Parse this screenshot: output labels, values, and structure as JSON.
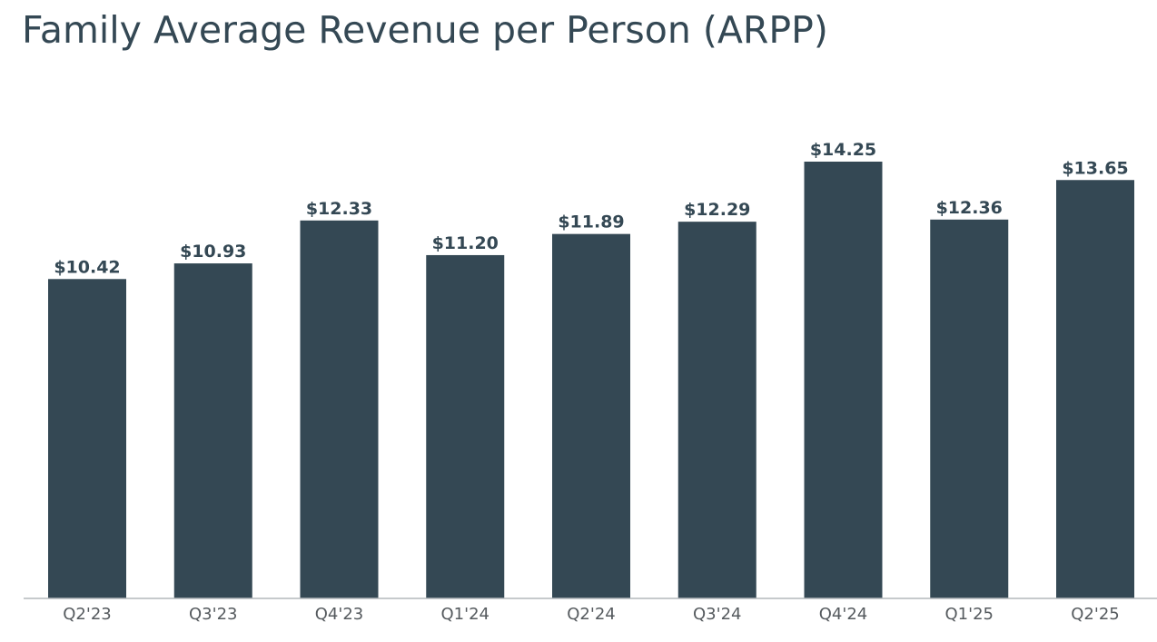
{
  "title": "Family Average Revenue per Person (ARPP)",
  "colors": {
    "bar": "#344854",
    "text": "#344854",
    "axis": "#b4b8bb",
    "tick_text": "#555a5e"
  },
  "chart_data": {
    "type": "bar",
    "title": "Family Average Revenue per Person (ARPP)",
    "xlabel": "",
    "ylabel": "",
    "categories": [
      "Q2'23",
      "Q3'23",
      "Q4'23",
      "Q1'24",
      "Q2'24",
      "Q3'24",
      "Q4'24",
      "Q1'25",
      "Q2'25"
    ],
    "values": [
      10.42,
      10.93,
      12.33,
      11.2,
      11.89,
      12.29,
      14.25,
      12.36,
      13.65
    ],
    "value_labels": [
      "$10.42",
      "$10.93",
      "$12.33",
      "$11.20",
      "$11.89",
      "$12.29",
      "$14.25",
      "$12.36",
      "$13.65"
    ],
    "ylim": [
      0,
      14.25
    ],
    "grid": false,
    "legend": "none"
  }
}
